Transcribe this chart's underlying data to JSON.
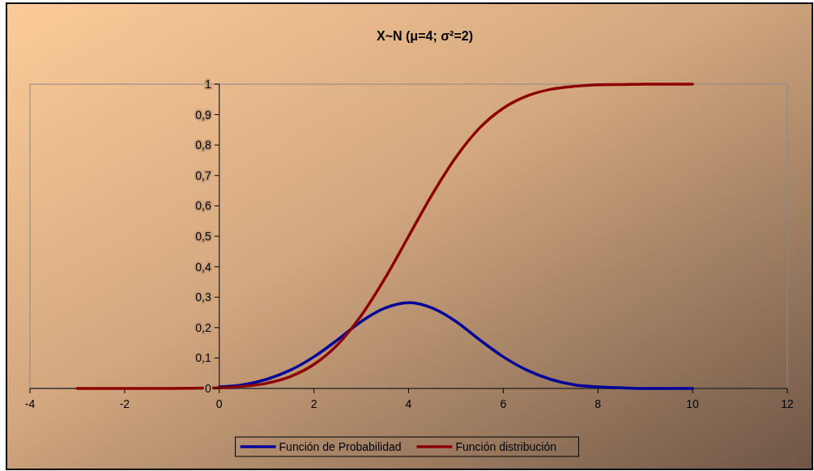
{
  "chart_data": {
    "type": "line",
    "title": "X~N (μ=4; σ²=2)",
    "x": [
      -3,
      -2,
      -1,
      0,
      0.5,
      1,
      1.5,
      2,
      2.5,
      3,
      3.5,
      4,
      4.5,
      5,
      5.5,
      6,
      6.5,
      7,
      7.5,
      8,
      8.5,
      9,
      10
    ],
    "series": [
      {
        "name": "Función de Probabilidad",
        "color": "#000099",
        "values": [
          null,
          null,
          null,
          0.005,
          0.012,
          0.03,
          0.06,
          0.104,
          0.16,
          0.22,
          0.264,
          0.282,
          0.264,
          0.22,
          0.16,
          0.104,
          0.06,
          0.03,
          0.012,
          0.005,
          0.002,
          0,
          0
        ]
      },
      {
        "name": "Función distribución",
        "color": "#8b0000",
        "values": [
          0,
          0,
          0,
          0.002,
          0.007,
          0.017,
          0.039,
          0.079,
          0.144,
          0.24,
          0.362,
          0.5,
          0.638,
          0.76,
          0.856,
          0.921,
          0.961,
          0.983,
          0.993,
          0.998,
          0.999,
          1,
          1
        ]
      }
    ],
    "xlim": [
      -4,
      12
    ],
    "xticks": [
      {
        "value": -4,
        "label": "-4"
      },
      {
        "value": -2,
        "label": "-2"
      },
      0,
      2,
      4,
      6,
      8,
      10,
      12
    ],
    "ylim": [
      0,
      1
    ],
    "yticks": [
      0,
      {
        "value": 0.1,
        "label": "0,1"
      },
      {
        "value": 0.2,
        "label": "0,2"
      },
      {
        "value": 0.3,
        "label": "0,3"
      },
      {
        "value": 0.4,
        "label": "0,4"
      },
      {
        "value": 0.5,
        "label": "0,5"
      },
      {
        "value": 0.6,
        "label": "0,6"
      },
      {
        "value": 0.7,
        "label": "0,7"
      },
      {
        "value": 0.8,
        "label": "0,8"
      },
      {
        "value": 0.9,
        "label": "0,9"
      },
      1
    ],
    "grid": false,
    "legend": "bottom",
    "marker": "none",
    "line_style": "solid"
  }
}
